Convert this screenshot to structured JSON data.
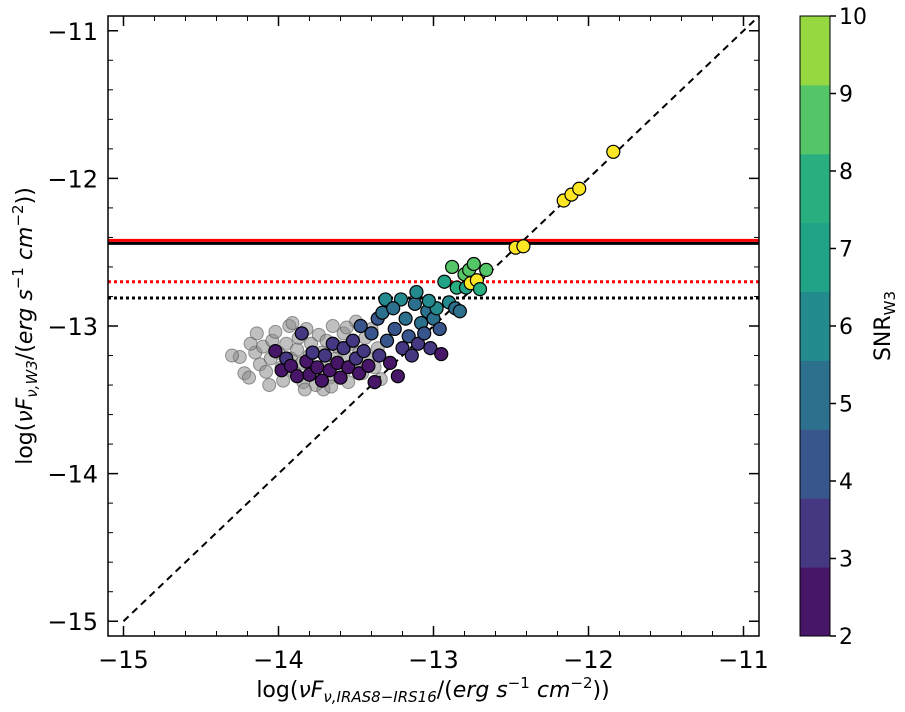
{
  "chart_data": {
    "type": "scatter",
    "xlabel": "log(νF_{ν,IRAS8−IRS16}/(erg s^{−1} cm^{−2}))",
    "ylabel": "log(νF_{ν,W3}/(erg s^{−1} cm^{−2}))",
    "xlim": [
      -15.1,
      -10.9
    ],
    "ylim": [
      -15.1,
      -10.9
    ],
    "x_ticks": [
      -15,
      -14,
      -13,
      -12,
      -11
    ],
    "x_tick_labels": [
      "−15",
      "−14",
      "−13",
      "−12",
      "−11"
    ],
    "y_ticks": [
      -15,
      -14,
      -13,
      -12,
      -11
    ],
    "y_tick_labels": [
      "−15",
      "−14",
      "−13",
      "−12",
      "−11"
    ],
    "one_to_one_line": {
      "from": [
        -15,
        -15
      ],
      "to": [
        -10.9,
        -10.9
      ],
      "style": "dashed",
      "color": "#000000"
    },
    "horizontal_lines": [
      {
        "y": -12.42,
        "color": "#ff0000",
        "style": "solid"
      },
      {
        "y": -12.44,
        "color": "#000000",
        "style": "solid"
      },
      {
        "y": -12.7,
        "color": "#ff0000",
        "style": "dotted"
      },
      {
        "y": -12.81,
        "color": "#000000",
        "style": "dotted"
      }
    ],
    "colorbar": {
      "label": "SNR_W3",
      "label_main": "SNR",
      "label_sub": "W3",
      "min": 2,
      "max": 10,
      "ticks": [
        2,
        3,
        4,
        5,
        6,
        7,
        8,
        9,
        10
      ],
      "bin_colors": [
        "#481669",
        "#453781",
        "#39568c",
        "#2d708e",
        "#238a8d",
        "#20a386",
        "#29af7f",
        "#55c667",
        "#95d840"
      ],
      "over_color": "#fde725"
    },
    "gray_points": {
      "color": "#8c8c8c",
      "points": [
        [
          -14.25,
          -13.21
        ],
        [
          -14.22,
          -13.32
        ],
        [
          -14.19,
          -13.35
        ],
        [
          -14.15,
          -13.18
        ],
        [
          -14.14,
          -13.05
        ],
        [
          -14.12,
          -13.26
        ],
        [
          -14.1,
          -13.14
        ],
        [
          -14.08,
          -13.31
        ],
        [
          -14.05,
          -13.22
        ],
        [
          -14.04,
          -13.1
        ],
        [
          -14.02,
          -13.04
        ],
        [
          -14.0,
          -13.18
        ],
        [
          -13.98,
          -13.28
        ],
        [
          -13.97,
          -13.37
        ],
        [
          -13.95,
          -13.12
        ],
        [
          -13.93,
          -13.0
        ],
        [
          -13.92,
          -13.22
        ],
        [
          -13.9,
          -13.31
        ],
        [
          -13.88,
          -13.16
        ],
        [
          -13.87,
          -13.08
        ],
        [
          -13.85,
          -13.25
        ],
        [
          -13.84,
          -13.38
        ],
        [
          -13.82,
          -13.02
        ],
        [
          -13.8,
          -13.2
        ],
        [
          -13.79,
          -13.12
        ],
        [
          -13.77,
          -13.3
        ],
        [
          -13.76,
          -13.4
        ],
        [
          -13.74,
          -13.06
        ],
        [
          -13.72,
          -13.18
        ],
        [
          -13.7,
          -13.27
        ],
        [
          -13.69,
          -13.1
        ],
        [
          -13.67,
          -13.35
        ],
        [
          -13.65,
          -13.0
        ],
        [
          -13.63,
          -13.22
        ],
        [
          -13.62,
          -13.14
        ],
        [
          -13.6,
          -13.3
        ],
        [
          -13.58,
          -13.05
        ],
        [
          -13.57,
          -13.2
        ],
        [
          -13.55,
          -13.38
        ],
        [
          -13.53,
          -13.12
        ],
        [
          -13.51,
          -13.25
        ],
        [
          -13.5,
          -12.97
        ],
        [
          -13.48,
          -13.18
        ],
        [
          -13.46,
          -13.32
        ],
        [
          -13.44,
          -13.08
        ],
        [
          -13.42,
          -13.22
        ],
        [
          -13.4,
          -13.02
        ],
        [
          -13.38,
          -13.28
        ],
        [
          -13.36,
          -13.15
        ],
        [
          -13.34,
          -13.36
        ],
        [
          -14.3,
          -13.2
        ],
        [
          -14.06,
          -13.4
        ],
        [
          -13.83,
          -13.43
        ],
        [
          -13.71,
          -13.43
        ],
        [
          -13.56,
          -13.01
        ],
        [
          -13.91,
          -12.98
        ],
        [
          -14.18,
          -13.12
        ],
        [
          -13.66,
          -13.41
        ]
      ]
    },
    "colored_points": [
      {
        "x": -14.02,
        "y": -13.17,
        "snr": 2.5
      },
      {
        "x": -13.98,
        "y": -13.3,
        "snr": 2.7
      },
      {
        "x": -13.95,
        "y": -13.22,
        "snr": 3.2
      },
      {
        "x": -13.92,
        "y": -13.27,
        "snr": 2.4
      },
      {
        "x": -13.88,
        "y": -13.34,
        "snr": 2.6
      },
      {
        "x": -13.85,
        "y": -13.05,
        "snr": 3.4
      },
      {
        "x": -13.82,
        "y": -13.24,
        "snr": 2.8
      },
      {
        "x": -13.8,
        "y": -13.33,
        "snr": 2.3
      },
      {
        "x": -13.78,
        "y": -13.18,
        "snr": 3.1
      },
      {
        "x": -13.75,
        "y": -13.28,
        "snr": 2.5
      },
      {
        "x": -13.72,
        "y": -13.37,
        "snr": 2.2
      },
      {
        "x": -13.7,
        "y": -13.2,
        "snr": 3.3
      },
      {
        "x": -13.67,
        "y": -13.3,
        "snr": 2.6
      },
      {
        "x": -13.65,
        "y": -13.12,
        "snr": 3.6
      },
      {
        "x": -13.62,
        "y": -13.25,
        "snr": 2.9
      },
      {
        "x": -13.6,
        "y": -13.35,
        "snr": 2.3
      },
      {
        "x": -13.58,
        "y": -13.15,
        "snr": 3.4
      },
      {
        "x": -13.55,
        "y": -13.28,
        "snr": 2.7
      },
      {
        "x": -13.52,
        "y": -13.1,
        "snr": 3.8
      },
      {
        "x": -13.5,
        "y": -13.22,
        "snr": 3.1
      },
      {
        "x": -13.48,
        "y": -13.32,
        "snr": 2.4
      },
      {
        "x": -13.45,
        "y": -13.17,
        "snr": 3.5
      },
      {
        "x": -13.42,
        "y": -13.27,
        "snr": 2.8
      },
      {
        "x": -13.4,
        "y": -13.05,
        "snr": 4.3
      },
      {
        "x": -13.38,
        "y": -13.38,
        "snr": 2.2
      },
      {
        "x": -13.36,
        "y": -12.95,
        "snr": 4.8
      },
      {
        "x": -13.35,
        "y": -13.2,
        "snr": 3.3
      },
      {
        "x": -13.33,
        "y": -12.91,
        "snr": 5.6
      },
      {
        "x": -13.3,
        "y": -13.1,
        "snr": 4.0
      },
      {
        "x": -13.28,
        "y": -13.25,
        "snr": 2.9
      },
      {
        "x": -13.25,
        "y": -13.02,
        "snr": 4.5
      },
      {
        "x": -13.23,
        "y": -13.34,
        "snr": 2.3
      },
      {
        "x": -13.21,
        "y": -12.82,
        "snr": 6.1
      },
      {
        "x": -13.2,
        "y": -13.15,
        "snr": 3.5
      },
      {
        "x": -13.18,
        "y": -12.95,
        "snr": 5.2
      },
      {
        "x": -13.16,
        "y": -13.07,
        "snr": 4.2
      },
      {
        "x": -13.14,
        "y": -13.2,
        "snr": 3.2
      },
      {
        "x": -13.12,
        "y": -12.85,
        "snr": 5.8
      },
      {
        "x": -13.1,
        "y": -13.12,
        "snr": 3.8
      },
      {
        "x": -13.08,
        "y": -12.98,
        "snr": 5.0
      },
      {
        "x": -13.06,
        "y": -13.05,
        "snr": 4.4
      },
      {
        "x": -13.04,
        "y": -12.9,
        "snr": 5.6
      },
      {
        "x": -13.02,
        "y": -13.15,
        "snr": 3.4
      },
      {
        "x": -13.0,
        "y": -12.95,
        "snr": 5.3
      },
      {
        "x": -12.98,
        "y": -12.88,
        "snr": 6.0
      },
      {
        "x": -12.96,
        "y": -13.02,
        "snr": 4.7
      },
      {
        "x": -12.95,
        "y": -13.19,
        "snr": 2.4
      },
      {
        "x": -12.93,
        "y": -12.7,
        "snr": 7.2
      },
      {
        "x": -12.9,
        "y": -12.84,
        "snr": 6.2
      },
      {
        "x": -12.88,
        "y": -12.6,
        "snr": 9.2
      },
      {
        "x": -12.86,
        "y": -12.88,
        "snr": 5.9
      },
      {
        "x": -12.85,
        "y": -12.74,
        "snr": 8.2
      },
      {
        "x": -12.83,
        "y": -12.9,
        "snr": 5.7
      },
      {
        "x": -12.8,
        "y": -12.65,
        "snr": 9.4
      },
      {
        "x": -12.79,
        "y": -12.74,
        "snr": 7.4
      },
      {
        "x": -12.77,
        "y": -12.62,
        "snr": 9.5
      },
      {
        "x": -12.76,
        "y": -12.71,
        "snr": 10.4
      },
      {
        "x": -12.74,
        "y": -12.58,
        "snr": 9.6
      },
      {
        "x": -12.72,
        "y": -12.69,
        "snr": 10.6
      },
      {
        "x": -12.7,
        "y": -12.75,
        "snr": 8.4
      },
      {
        "x": -12.66,
        "y": -12.62,
        "snr": 9.3
      },
      {
        "x": -13.11,
        "y": -12.77,
        "snr": 6.3
      },
      {
        "x": -13.31,
        "y": -12.82,
        "snr": 6.4
      },
      {
        "x": -13.47,
        "y": -13.0,
        "snr": 4.9
      },
      {
        "x": -13.26,
        "y": -12.88,
        "snr": 5.9
      },
      {
        "x": -13.03,
        "y": -12.83,
        "snr": 6.0
      },
      {
        "x": -12.47,
        "y": -12.47,
        "snr": 10.8
      },
      {
        "x": -12.42,
        "y": -12.46,
        "snr": 10.8
      },
      {
        "x": -12.16,
        "y": -12.15,
        "snr": 10.9
      },
      {
        "x": -12.11,
        "y": -12.11,
        "snr": 11.0
      },
      {
        "x": -12.06,
        "y": -12.07,
        "snr": 11.0
      },
      {
        "x": -11.84,
        "y": -11.82,
        "snr": 11.2
      }
    ]
  }
}
